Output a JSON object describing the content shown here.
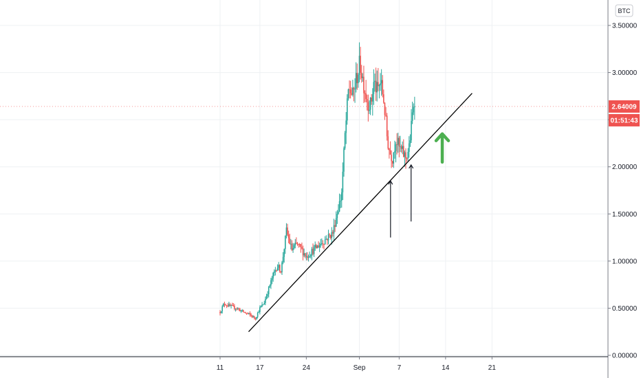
{
  "chart_data": {
    "type": "candlestick",
    "currency": "BTC",
    "ylim": [
      0,
      3.6
    ],
    "y_ticks": [
      "3.50000",
      "3.00000",
      "2.50000",
      "2.00000",
      "1.50000",
      "1.00000",
      "0.50000",
      "0.00000"
    ],
    "y_tick_values": [
      3.5,
      3.0,
      2.5,
      2.0,
      1.5,
      1.0,
      0.5,
      0.0
    ],
    "x_ticks": [
      "11",
      "17",
      "24",
      "Sep",
      "7",
      "14",
      "21"
    ],
    "x_tick_days": [
      11,
      17,
      24,
      32,
      38,
      45,
      52
    ],
    "x_range_days": [
      -16,
      64
    ],
    "last_price": "2.64009",
    "last_price_value": 2.64009,
    "countdown": "01:51:43",
    "colors": {
      "up": "#26a69a",
      "down": "#ef5350",
      "grid": "#eef0f3",
      "trendline": "#000000",
      "arrow_up": "#4caf50",
      "price_badge": "#ef5350"
    },
    "keyframes": [
      [
        11.0,
        0.46
      ],
      [
        11.6,
        0.55
      ],
      [
        12.5,
        0.52
      ],
      [
        13.5,
        0.5
      ],
      [
        14.5,
        0.46
      ],
      [
        15.5,
        0.43
      ],
      [
        16.3,
        0.39
      ],
      [
        17.0,
        0.5
      ],
      [
        17.6,
        0.55
      ],
      [
        18.3,
        0.7
      ],
      [
        19.0,
        0.85
      ],
      [
        19.6,
        0.95
      ],
      [
        20.2,
        0.9
      ],
      [
        21.0,
        1.32
      ],
      [
        21.8,
        1.12
      ],
      [
        22.6,
        1.18
      ],
      [
        23.3,
        1.12
      ],
      [
        24.0,
        1.05
      ],
      [
        24.8,
        1.1
      ],
      [
        25.6,
        1.15
      ],
      [
        26.4,
        1.2
      ],
      [
        27.2,
        1.25
      ],
      [
        28.0,
        1.3
      ],
      [
        28.6,
        1.5
      ],
      [
        29.3,
        1.7
      ],
      [
        29.8,
        2.3
      ],
      [
        30.4,
        2.85
      ],
      [
        31.0,
        2.75
      ],
      [
        31.6,
        2.95
      ],
      [
        32.1,
        3.1
      ],
      [
        32.6,
        2.9
      ],
      [
        33.2,
        2.7
      ],
      [
        33.7,
        2.65
      ],
      [
        34.2,
        2.9
      ],
      [
        34.7,
        2.8
      ],
      [
        35.2,
        2.9
      ],
      [
        35.7,
        2.7
      ],
      [
        36.2,
        2.3
      ],
      [
        36.6,
        2.15
      ],
      [
        37.0,
        2.1
      ],
      [
        37.5,
        2.3
      ],
      [
        38.0,
        2.2
      ],
      [
        38.5,
        2.15
      ],
      [
        39.0,
        2.1
      ],
      [
        39.5,
        2.2
      ],
      [
        39.8,
        2.4
      ],
      [
        40.2,
        2.7
      ],
      [
        40.4,
        2.64
      ]
    ],
    "trendline": {
      "start": [
        15.3,
        0.25
      ],
      "end": [
        49.0,
        2.78
      ]
    },
    "annotations": {
      "up_arrows": [
        {
          "x": 36.7,
          "y_from": 1.25,
          "y_to": 1.85
        },
        {
          "x": 39.8,
          "y_from": 1.42,
          "y_to": 2.02
        }
      ],
      "bullish_arrow": {
        "x": 44.5,
        "y_from": 2.05,
        "y_to": 2.35
      }
    }
  }
}
